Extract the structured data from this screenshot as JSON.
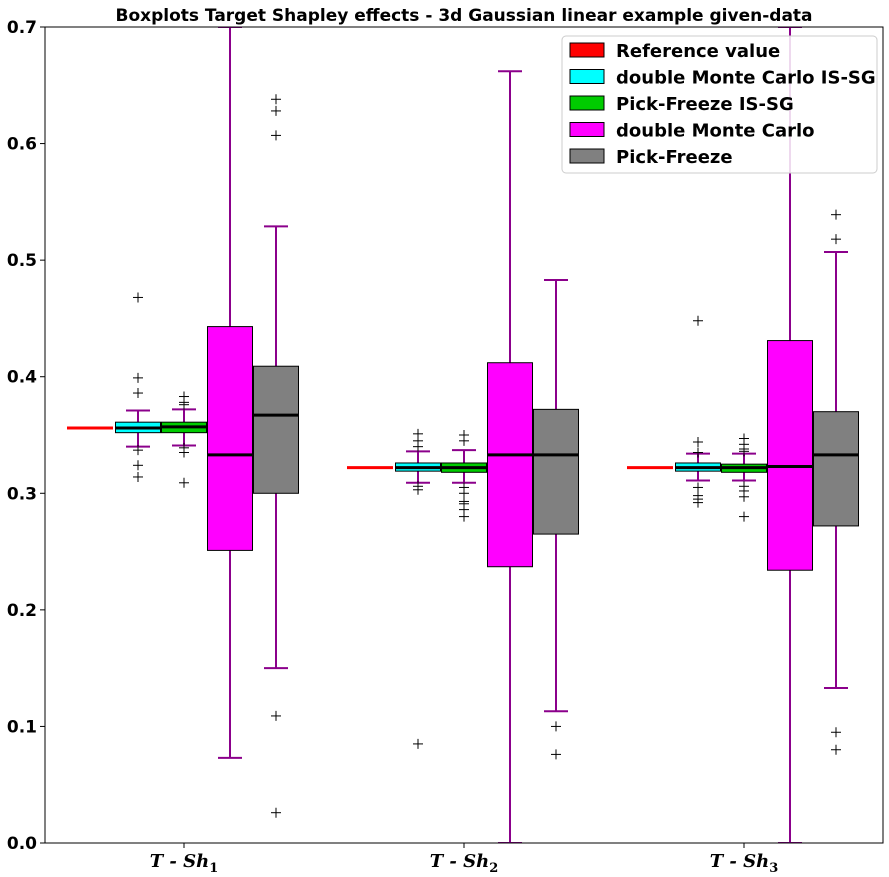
{
  "chart_data": {
    "type": "boxplot",
    "title": "Boxplots Target Shapley effects - 3d Gaussian linear example given-data",
    "xlabel": "",
    "ylabel": "",
    "ylim": [
      0,
      0.7
    ],
    "yticks": [
      0.0,
      0.1,
      0.2,
      0.3,
      0.4,
      0.5,
      0.6,
      0.7
    ],
    "ytick_labels": [
      "0.0",
      "0.1",
      "0.2",
      "0.3",
      "0.4",
      "0.5",
      "0.6",
      "0.7"
    ],
    "categories": [
      {
        "base": "T - Sh",
        "sub": "1"
      },
      {
        "base": "T - Sh",
        "sub": "2"
      },
      {
        "base": "T - Sh",
        "sub": "3"
      }
    ],
    "legend_position": "top-right",
    "series": [
      {
        "name": "Reference value",
        "color": "#ff0000",
        "kind": "reference",
        "values": [
          0.356,
          0.322,
          0.322
        ]
      },
      {
        "name": "double Monte Carlo IS-SG",
        "color": "#00ffff",
        "kind": "box",
        "boxes": [
          {
            "whislo": 0.34,
            "q1": 0.352,
            "med": 0.356,
            "q3": 0.361,
            "whishi": 0.371,
            "fliers": [
              0.468,
              0.399,
              0.386,
              0.337,
              0.324,
              0.314
            ]
          },
          {
            "whislo": 0.309,
            "q1": 0.319,
            "med": 0.322,
            "q3": 0.326,
            "whishi": 0.336,
            "fliers": [
              0.351,
              0.345,
              0.34,
              0.306,
              0.303,
              0.085
            ]
          },
          {
            "whislo": 0.311,
            "q1": 0.319,
            "med": 0.322,
            "q3": 0.326,
            "whishi": 0.334,
            "fliers": [
              0.344,
              0.335,
              0.305,
              0.298,
              0.295,
              0.292,
              0.448
            ]
          }
        ]
      },
      {
        "name": "Pick-Freeze IS-SG",
        "color": "#00cc00",
        "kind": "box",
        "boxes": [
          {
            "whislo": 0.341,
            "q1": 0.352,
            "med": 0.357,
            "q3": 0.361,
            "whishi": 0.372,
            "fliers": [
              0.383,
              0.378,
              0.376,
              0.339,
              0.335,
              0.309
            ]
          },
          {
            "whislo": 0.309,
            "q1": 0.318,
            "med": 0.322,
            "q3": 0.326,
            "whishi": 0.337,
            "fliers": [
              0.35,
              0.345,
              0.305,
              0.3,
              0.293,
              0.291,
              0.286,
              0.28
            ]
          },
          {
            "whislo": 0.311,
            "q1": 0.318,
            "med": 0.322,
            "q3": 0.325,
            "whishi": 0.334,
            "fliers": [
              0.347,
              0.342,
              0.338,
              0.336,
              0.306,
              0.302,
              0.297,
              0.28
            ]
          }
        ]
      },
      {
        "name": "double Monte Carlo",
        "color": "#ff00ff",
        "kind": "box",
        "boxes": [
          {
            "whislo": 0.073,
            "q1": 0.251,
            "med": 0.333,
            "q3": 0.443,
            "whishi": 0.7,
            "fliers": []
          },
          {
            "whislo": 0.0,
            "q1": 0.237,
            "med": 0.333,
            "q3": 0.412,
            "whishi": 0.662,
            "fliers": []
          },
          {
            "whislo": 0.0,
            "q1": 0.234,
            "med": 0.323,
            "q3": 0.431,
            "whishi": 0.7,
            "fliers": []
          }
        ]
      },
      {
        "name": "Pick-Freeze",
        "color": "#808080",
        "kind": "box",
        "boxes": [
          {
            "whislo": 0.15,
            "q1": 0.3,
            "med": 0.367,
            "q3": 0.409,
            "whishi": 0.529,
            "fliers": [
              0.638,
              0.628,
              0.607,
              0.109,
              0.026
            ]
          },
          {
            "whislo": 0.113,
            "q1": 0.265,
            "med": 0.333,
            "q3": 0.372,
            "whishi": 0.483,
            "fliers": [
              0.1,
              0.076
            ]
          },
          {
            "whislo": 0.133,
            "q1": 0.272,
            "med": 0.333,
            "q3": 0.37,
            "whishi": 0.507,
            "fliers": [
              0.539,
              0.518,
              0.095,
              0.08
            ]
          }
        ]
      }
    ],
    "whisker_color": "#8b008b",
    "median_color": "#000000",
    "flier_marker": "+"
  }
}
